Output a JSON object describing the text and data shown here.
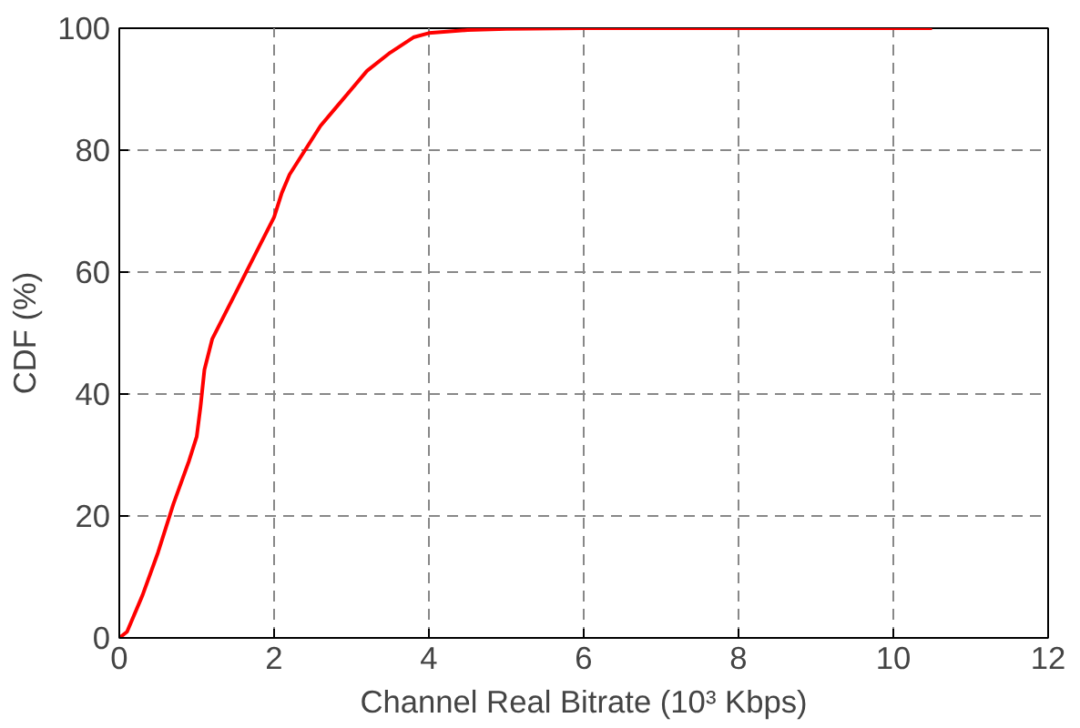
{
  "chart_data": {
    "type": "line",
    "xlabel": "Channel Real Bitrate (10³ Kbps)",
    "ylabel": "CDF (%)",
    "x": [
      0,
      0.1,
      0.3,
      0.5,
      0.7,
      0.9,
      1.0,
      1.05,
      1.1,
      1.2,
      1.4,
      1.6,
      1.8,
      2.0,
      2.1,
      2.2,
      2.4,
      2.6,
      2.8,
      3.0,
      3.2,
      3.5,
      3.8,
      4.0,
      4.5,
      5,
      6,
      8,
      10.5
    ],
    "series": [
      {
        "color": "#ff0000",
        "values": [
          0,
          1,
          7,
          14,
          22,
          29,
          33,
          38,
          44,
          49,
          54,
          59,
          64,
          69,
          73,
          76,
          80,
          84,
          87,
          90,
          93,
          96,
          98.5,
          99.2,
          99.7,
          99.9,
          100,
          100,
          100
        ]
      }
    ],
    "xlim": [
      0,
      12
    ],
    "ylim": [
      0,
      100
    ],
    "xticks": [
      0,
      2,
      4,
      6,
      8,
      10,
      12
    ],
    "yticks": [
      0,
      20,
      40,
      60,
      80,
      100
    ],
    "grid": true,
    "line_style": "solid",
    "marker": "none"
  }
}
